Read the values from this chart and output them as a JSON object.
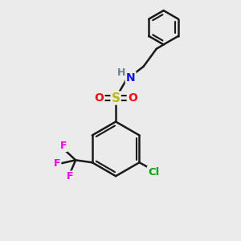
{
  "background_color": "#ebebeb",
  "bond_color": "#1a1a1a",
  "atom_colors": {
    "C": "#1a1a1a",
    "H": "#708090",
    "N": "#1010ee",
    "O": "#ee1010",
    "S": "#bbbb00",
    "F": "#ee00ee",
    "Cl": "#00aa00"
  },
  "figsize": [
    3.0,
    3.0
  ],
  "dpi": 100
}
